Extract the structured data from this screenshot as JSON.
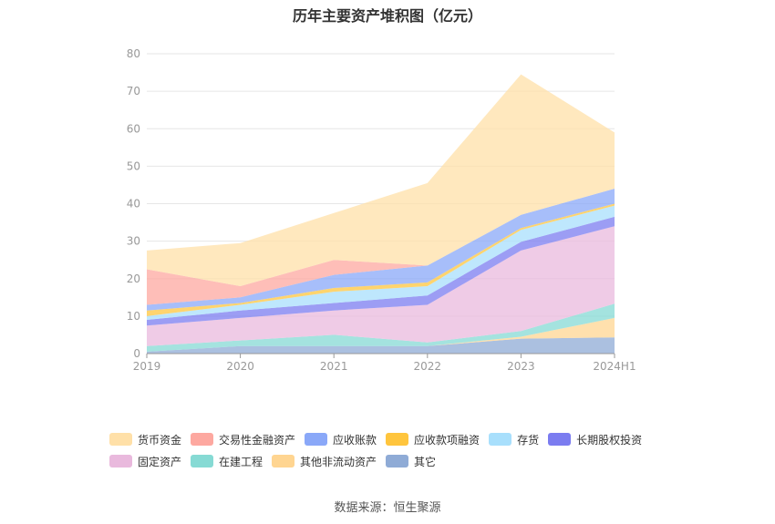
{
  "chart_data": {
    "type": "area",
    "stacked": true,
    "title": "历年主要资产堆积图（亿元）",
    "categories": [
      "2019",
      "2020",
      "2021",
      "2022",
      "2023",
      "2024H1"
    ],
    "ylim": [
      0,
      80
    ],
    "yticks": [
      0,
      10,
      20,
      30,
      40,
      50,
      60,
      70,
      80
    ],
    "grid": true,
    "legend_position": "bottom",
    "series": [
      {
        "name": "其它",
        "color": "#8fabd6",
        "values": [
          0.5,
          2.0,
          2.0,
          2.0,
          4.0,
          4.3
        ]
      },
      {
        "name": "其他非流动资产",
        "color": "#ffd591",
        "values": [
          0.0,
          0.0,
          0.0,
          0.0,
          0.5,
          5.2
        ]
      },
      {
        "name": "在建工程",
        "color": "#86dad4",
        "values": [
          1.5,
          1.5,
          3.0,
          1.0,
          1.5,
          3.8
        ]
      },
      {
        "name": "固定资产",
        "color": "#e9b9dd",
        "values": [
          5.5,
          6.0,
          6.5,
          10.0,
          21.5,
          20.7
        ]
      },
      {
        "name": "长期股权投资",
        "color": "#7b7cf0",
        "values": [
          1.5,
          2.0,
          2.0,
          2.5,
          2.3,
          2.5
        ]
      },
      {
        "name": "存货",
        "color": "#a8dffc",
        "values": [
          1.0,
          1.5,
          3.0,
          2.5,
          3.2,
          3.0
        ]
      },
      {
        "name": "应收款项融资",
        "color": "#ffc53d",
        "values": [
          1.5,
          0.5,
          1.0,
          1.0,
          0.5,
          0.5
        ]
      },
      {
        "name": "应收账款",
        "color": "#8aa8f8",
        "values": [
          1.5,
          1.5,
          3.5,
          4.5,
          3.5,
          4.0
        ]
      },
      {
        "name": "交易性金融资产",
        "color": "#fda8a0",
        "values": [
          9.5,
          3.0,
          4.0,
          0.0,
          0.0,
          0.0
        ]
      },
      {
        "name": "货币资金",
        "color": "#ffe0a8",
        "values": [
          5.0,
          11.5,
          12.5,
          22.0,
          37.5,
          15.0
        ]
      }
    ]
  },
  "legend_rows": [
    [
      "货币资金",
      "交易性金融资产",
      "应收账款",
      "应收款项融资",
      "存货",
      "长期股权投资"
    ],
    [
      "固定资产",
      "在建工程",
      "其他非流动资产",
      "其它"
    ]
  ],
  "source": "数据来源：恒生聚源"
}
